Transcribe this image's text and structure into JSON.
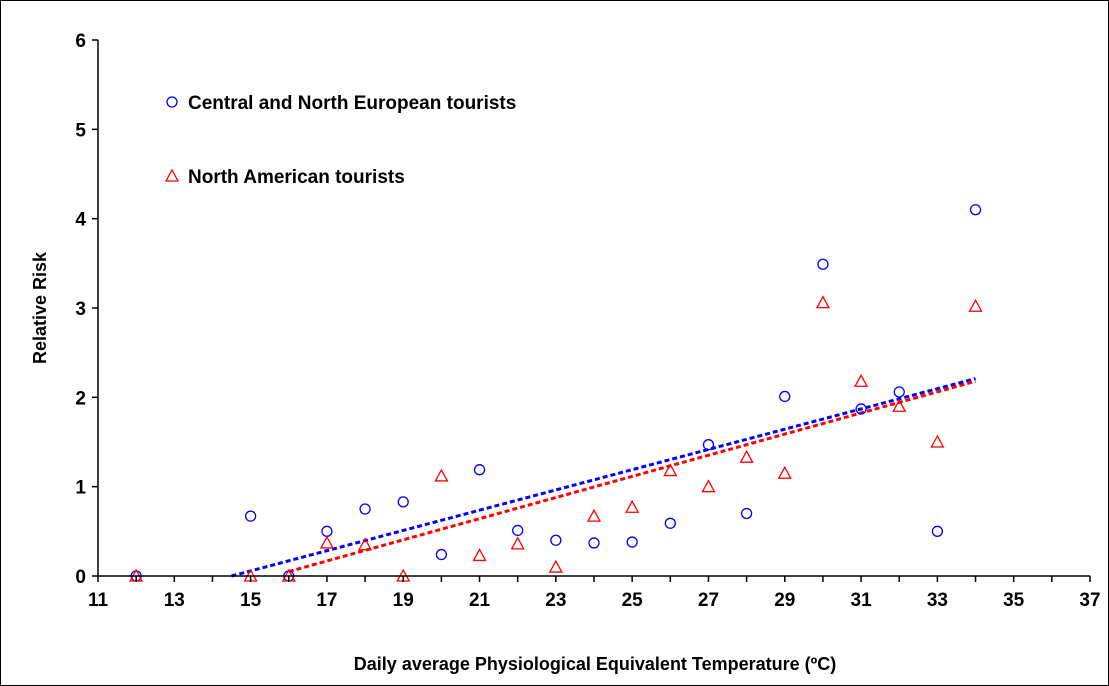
{
  "chart_data": {
    "type": "scatter",
    "xlabel": "Daily average Physiological Equivalent Temperature (ºC)",
    "ylabel": "Relative Risk",
    "xlim": [
      11,
      37
    ],
    "ylim": [
      0,
      6
    ],
    "x_ticks": [
      11,
      13,
      15,
      17,
      19,
      21,
      23,
      25,
      27,
      29,
      31,
      33,
      35,
      37
    ],
    "y_ticks": [
      0,
      1,
      2,
      3,
      4,
      5,
      6
    ],
    "grid": false,
    "legend_position": "top-left",
    "series": [
      {
        "name": "Central and North European tourists",
        "marker": "circle",
        "color": "#0000ff",
        "points": [
          [
            12,
            0
          ],
          [
            15,
            0.67
          ],
          [
            16,
            0
          ],
          [
            17,
            0.5
          ],
          [
            18,
            0.75
          ],
          [
            19,
            0.83
          ],
          [
            20,
            0.24
          ],
          [
            21,
            1.19
          ],
          [
            22,
            0.51
          ],
          [
            23,
            0.4
          ],
          [
            24,
            0.37
          ],
          [
            25,
            0.38
          ],
          [
            26,
            0.59
          ],
          [
            27,
            1.47
          ],
          [
            28,
            0.7
          ],
          [
            29,
            2.01
          ],
          [
            30,
            3.49
          ],
          [
            31,
            1.87
          ],
          [
            32,
            2.06
          ],
          [
            33,
            0.5
          ],
          [
            34,
            4.1
          ]
        ],
        "trendline": {
          "x_start": 14.5,
          "x_end": 34,
          "y_start": 0.0,
          "y_end": 2.21,
          "style": "dotted"
        }
      },
      {
        "name": "North American tourists",
        "marker": "triangle",
        "color": "#ff0000",
        "points": [
          [
            12,
            0
          ],
          [
            15,
            0
          ],
          [
            16,
            0
          ],
          [
            17,
            0.37
          ],
          [
            18,
            0.35
          ],
          [
            19,
            0
          ],
          [
            20,
            1.12
          ],
          [
            21,
            0.23
          ],
          [
            22,
            0.36
          ],
          [
            23,
            0.1
          ],
          [
            24,
            0.67
          ],
          [
            25,
            0.77
          ],
          [
            26,
            1.18
          ],
          [
            27,
            1.0
          ],
          [
            28,
            1.33
          ],
          [
            29,
            1.15
          ],
          [
            30,
            3.06
          ],
          [
            31,
            2.18
          ],
          [
            32,
            1.9
          ],
          [
            33,
            1.5
          ],
          [
            34,
            3.02
          ]
        ],
        "trendline": {
          "x_start": 16,
          "x_end": 34,
          "y_start": 0.05,
          "y_end": 2.18,
          "style": "dotted"
        }
      }
    ]
  }
}
